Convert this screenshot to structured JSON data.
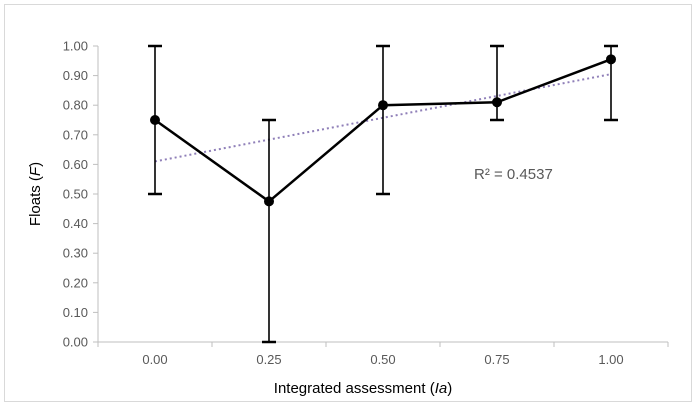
{
  "chart_data": {
    "type": "line",
    "title": "",
    "xlabel_prefix": "Integrated assessment (",
    "xlabel_symbol": "Ia",
    "xlabel_suffix": ")",
    "ylabel_prefix": "Floats (",
    "ylabel_symbol": "F",
    "ylabel_suffix": ")",
    "x_ticks": [
      "0.00",
      "0.25",
      "0.50",
      "0.75",
      "1.00"
    ],
    "y_ticks": [
      "0.00",
      "0.10",
      "0.20",
      "0.30",
      "0.40",
      "0.50",
      "0.60",
      "0.70",
      "0.80",
      "0.90",
      "1.00"
    ],
    "ylim": [
      0,
      1
    ],
    "grid": false,
    "series": [
      {
        "x": [
          0.0,
          0.25,
          0.5,
          0.75,
          1.0
        ],
        "y": [
          0.75,
          0.475,
          0.8,
          0.81,
          0.955
        ],
        "error_low": [
          0.5,
          0.0,
          0.5,
          0.75,
          0.75
        ],
        "error_high": [
          1.0,
          0.75,
          1.0,
          1.0,
          1.0
        ],
        "color": "#000000"
      }
    ],
    "trendline": {
      "type": "linear",
      "y_start": 0.61,
      "y_end": 0.905,
      "color": "#8f7fb8",
      "style": "dotted",
      "r2_label": "R² = 0.4537"
    }
  }
}
